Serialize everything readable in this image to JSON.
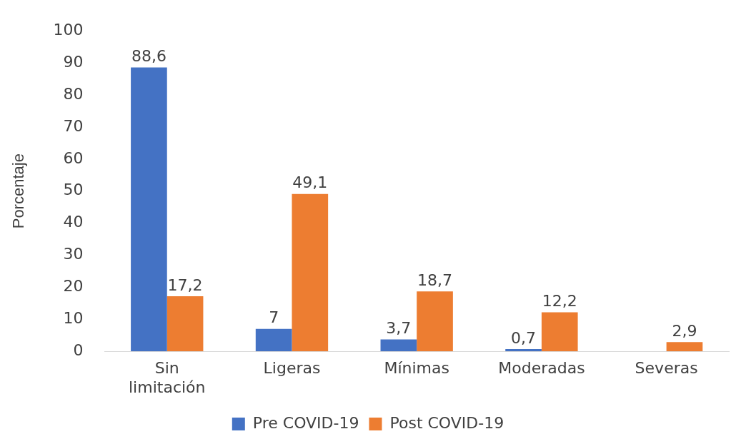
{
  "chart_data": {
    "type": "bar",
    "ylabel": "Porcentaje",
    "categories": [
      "Sin limitación",
      "Ligeras",
      "Mínimas",
      "Moderadas",
      "Severas"
    ],
    "series": [
      {
        "name": "Pre COVID-19",
        "color": "#4472c4",
        "values": [
          88.6,
          7,
          3.7,
          0.7,
          null
        ],
        "value_labels": [
          "88,6",
          "7",
          "3,7",
          "0,7",
          null
        ]
      },
      {
        "name": "Post COVID-19",
        "color": "#ed7d31",
        "values": [
          17.2,
          49.1,
          18.7,
          12.2,
          2.9
        ],
        "value_labels": [
          "17,2",
          "49,1",
          "18,7",
          "12,2",
          "2,9"
        ]
      }
    ],
    "ylim": [
      0,
      100
    ],
    "yticks": [
      0,
      10,
      20,
      30,
      40,
      50,
      60,
      70,
      80,
      90,
      100
    ],
    "grid": false,
    "legend": "bottom"
  }
}
